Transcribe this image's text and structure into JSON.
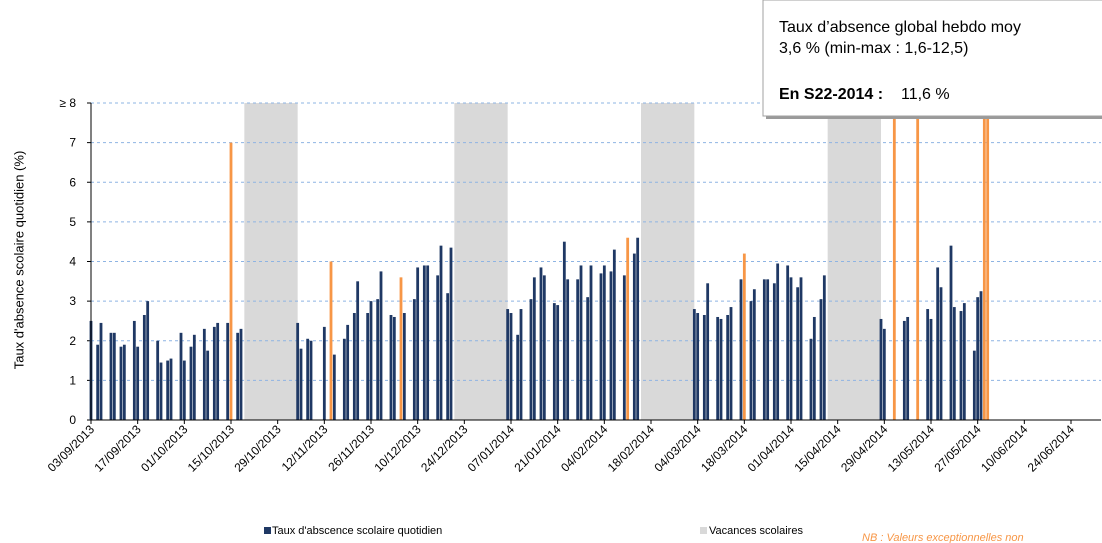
{
  "chart_data": {
    "type": "bar",
    "y_label": "Taux d'absence scolaire quotidien (%)",
    "xlim": [
      "03/09/2013",
      "03/07/2014"
    ],
    "xticks": [
      "03/09/2013",
      "17/09/2013",
      "01/10/2013",
      "15/10/2013",
      "29/10/2013",
      "12/11/2013",
      "26/11/2013",
      "10/12/2013",
      "24/12/2013",
      "07/01/2014",
      "21/01/2014",
      "04/02/2014",
      "18/02/2014",
      "04/03/2014",
      "18/03/2014",
      "01/04/2014",
      "15/04/2014",
      "29/04/2014",
      "13/05/2014",
      "27/05/2014",
      "10/06/2014",
      "24/06/2014"
    ],
    "ylim": [
      0,
      8
    ],
    "yticks": [
      0,
      1,
      2,
      3,
      4,
      5,
      6,
      7,
      {
        "value": 8,
        "label": "≥ 8"
      }
    ],
    "grid": true,
    "series": [
      {
        "name": "Taux d'abscence scolaire quotidien",
        "color": "#1f3864",
        "x": [
          "03/09/2013",
          "05/09/2013",
          "06/09/2013",
          "09/09/2013",
          "10/09/2013",
          "12/09/2013",
          "13/09/2013",
          "16/09/2013",
          "17/09/2013",
          "19/09/2013",
          "20/09/2013",
          "23/09/2013",
          "24/09/2013",
          "26/09/2013",
          "27/09/2013",
          "30/09/2013",
          "01/10/2013",
          "03/10/2013",
          "04/10/2013",
          "07/10/2013",
          "08/10/2013",
          "10/10/2013",
          "11/10/2013",
          "14/10/2013",
          "17/10/2013",
          "18/10/2013",
          "04/11/2013",
          "05/11/2013",
          "07/11/2013",
          "08/11/2013",
          "12/11/2013",
          "15/11/2013",
          "18/11/2013",
          "19/11/2013",
          "21/11/2013",
          "22/11/2013",
          "25/11/2013",
          "26/11/2013",
          "28/11/2013",
          "29/11/2013",
          "02/12/2013",
          "03/12/2013",
          "06/12/2013",
          "09/12/2013",
          "10/12/2013",
          "12/12/2013",
          "13/12/2013",
          "16/12/2013",
          "17/12/2013",
          "19/12/2013",
          "20/12/2013",
          "06/01/2014",
          "07/01/2014",
          "09/01/2014",
          "10/01/2014",
          "13/01/2014",
          "14/01/2014",
          "16/01/2014",
          "17/01/2014",
          "20/01/2014",
          "21/01/2014",
          "23/01/2014",
          "24/01/2014",
          "27/01/2014",
          "28/01/2014",
          "30/01/2014",
          "31/01/2014",
          "03/02/2014",
          "04/02/2014",
          "06/02/2014",
          "07/02/2014",
          "10/02/2014",
          "13/02/2014",
          "14/02/2014",
          "03/03/2014",
          "04/03/2014",
          "06/03/2014",
          "07/03/2014",
          "10/03/2014",
          "11/03/2014",
          "13/03/2014",
          "14/03/2014",
          "17/03/2014",
          "20/03/2014",
          "21/03/2014",
          "24/03/2014",
          "25/03/2014",
          "27/03/2014",
          "28/03/2014",
          "31/03/2014",
          "01/04/2014",
          "03/04/2014",
          "04/04/2014",
          "07/04/2014",
          "08/04/2014",
          "10/04/2014",
          "11/04/2014",
          "28/04/2014",
          "29/04/2014",
          "05/05/2014",
          "06/05/2014",
          "12/05/2014",
          "13/05/2014",
          "15/05/2014",
          "16/05/2014",
          "19/05/2014",
          "20/05/2014",
          "22/05/2014",
          "23/05/2014",
          "26/05/2014",
          "27/05/2014",
          "28/05/2014"
        ],
        "values": [
          2.5,
          1.9,
          2.45,
          2.2,
          2.2,
          1.85,
          1.9,
          2.5,
          1.85,
          2.65,
          3.0,
          2.0,
          1.45,
          1.5,
          1.55,
          2.2,
          1.5,
          1.85,
          2.15,
          2.3,
          1.75,
          2.35,
          2.45,
          2.45,
          2.2,
          2.3,
          2.45,
          1.8,
          2.05,
          2.0,
          2.35,
          1.65,
          2.05,
          2.4,
          2.7,
          3.5,
          2.7,
          3.0,
          3.05,
          3.75,
          2.65,
          2.6,
          2.7,
          3.05,
          3.85,
          3.9,
          3.9,
          3.65,
          4.4,
          3.2,
          4.35,
          2.8,
          2.7,
          2.15,
          2.8,
          3.05,
          3.6,
          3.85,
          3.65,
          2.95,
          2.9,
          4.5,
          3.55,
          3.55,
          3.9,
          3.1,
          3.9,
          3.7,
          3.9,
          3.75,
          4.3,
          3.65,
          4.2,
          4.6,
          2.8,
          2.7,
          2.65,
          3.45,
          2.6,
          2.55,
          2.65,
          2.85,
          3.55,
          3.0,
          3.3,
          3.55,
          3.55,
          3.45,
          3.95,
          3.9,
          3.6,
          3.35,
          3.6,
          2.05,
          2.6,
          3.05,
          3.65,
          2.55,
          2.3,
          2.5,
          2.6,
          2.8,
          2.55,
          3.85,
          3.35,
          4.4,
          2.85,
          2.75,
          2.95,
          1.75,
          3.1,
          3.25
        ]
      },
      {
        "color": "#f79646",
        "x": [
          "15/10/2013",
          "14/11/2013",
          "05/12/2013",
          "11/02/2014",
          "18/03/2014",
          "02/05/2014",
          "09/05/2014",
          "29/05/2014",
          "30/05/2014"
        ],
        "values": [
          7.0,
          4.0,
          3.6,
          4.6,
          4.2,
          8,
          8,
          8,
          8
        ]
      }
    ],
    "holidays": {
      "name": "Vacances scolaires",
      "color": "#d9d9d9",
      "periods": [
        [
          "19/10/2013",
          "03/11/2013"
        ],
        [
          "21/12/2013",
          "05/01/2014"
        ],
        [
          "15/02/2014",
          "02/03/2014"
        ],
        [
          "12/04/2014",
          "27/04/2014"
        ]
      ]
    },
    "note": "NB : Valeurs exceptionnelles non",
    "info_box": {
      "line1": "Taux d’absence global hebdo moy",
      "line2": "3,6 % (min-max : 1,6-12,5)",
      "line3_label": "En S22-2014 :",
      "line3_value": "11,6 %"
    }
  }
}
